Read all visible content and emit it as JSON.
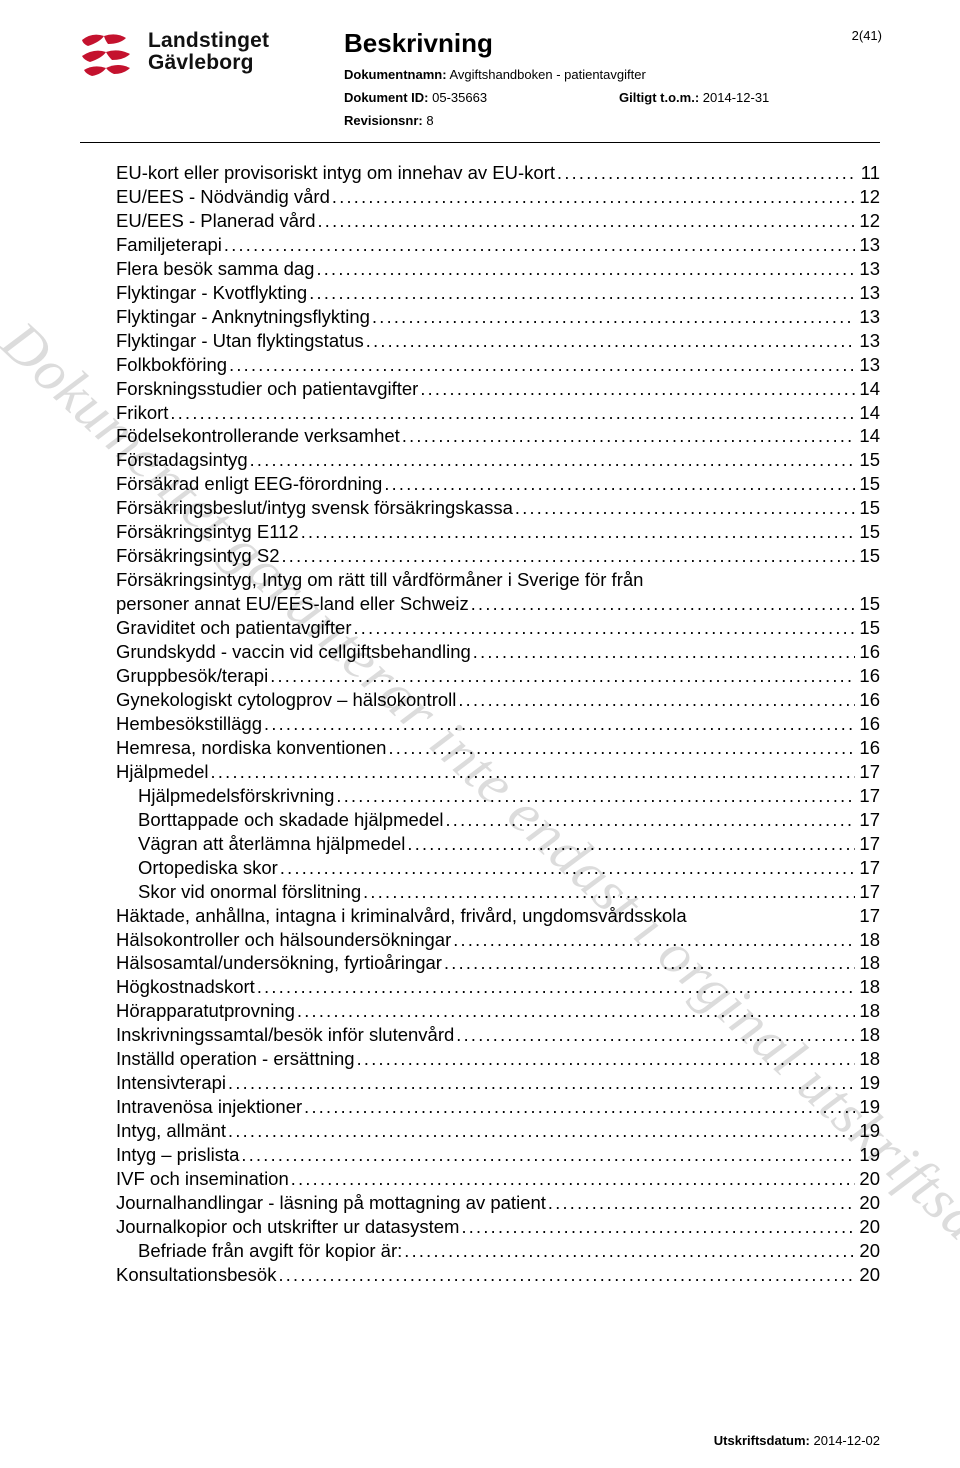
{
  "page_number": "2(41)",
  "logo": {
    "line1": "Landstinget",
    "line2": "Gävleborg"
  },
  "header": {
    "heading": "Beskrivning",
    "doc_name_label": "Dokumentnamn:",
    "doc_name": "Avgiftshandboken - patientavgifter",
    "doc_id_label": "Dokument ID:",
    "doc_id": "05-35663",
    "valid_label": "Giltigt t.o.m.:",
    "valid": "2014-12-31",
    "revision_label": "Revisionsnr:",
    "revision": "8"
  },
  "watermark": "Kopia - Dokumentet garanterar inte endast i orginal utskriftsdatumet",
  "footer": {
    "label": "Utskriftsdatum:",
    "date": "2014-12-02"
  },
  "toc": [
    {
      "title": "EU-kort eller provisoriskt intyg om innehav av EU-kort",
      "page": "11",
      "indent": 0
    },
    {
      "title": "EU/EES - Nödvändig vård",
      "page": "12",
      "indent": 0
    },
    {
      "title": "EU/EES - Planerad vård",
      "page": "12",
      "indent": 0
    },
    {
      "title": "Familjeterapi",
      "page": "13",
      "indent": 0
    },
    {
      "title": "Flera besök samma dag",
      "page": "13",
      "indent": 0
    },
    {
      "title": "Flyktingar - Kvotflykting",
      "page": "13",
      "indent": 0
    },
    {
      "title": "Flyktingar - Anknytningsflykting",
      "page": "13",
      "indent": 0
    },
    {
      "title": "Flyktingar - Utan flyktingstatus",
      "page": "13",
      "indent": 0
    },
    {
      "title": "Folkbokföring",
      "page": "13",
      "indent": 0
    },
    {
      "title": "Forskningsstudier och patientavgifter",
      "page": "14",
      "indent": 0
    },
    {
      "title": "Frikort",
      "page": "14",
      "indent": 0
    },
    {
      "title": "Födelsekontrollerande verksamhet",
      "page": "14",
      "indent": 0
    },
    {
      "title": "Förstadagsintyg",
      "page": "15",
      "indent": 0
    },
    {
      "title": "Försäkrad enligt EEG-förordning",
      "page": "15",
      "indent": 0
    },
    {
      "title": "Försäkringsbeslut/intyg svensk försäkringskassa",
      "page": "15",
      "indent": 0
    },
    {
      "title": "Försäkringsintyg E112",
      "page": "15",
      "indent": 0
    },
    {
      "title": "Försäkringsintyg S2",
      "page": "15",
      "indent": 0
    },
    {
      "title": "Försäkringsintyg, Intyg om rätt till vårdförmåner i Sverige för personer från annat EU/EES-land eller Schweiz",
      "page": "15",
      "indent": 0,
      "wrap": true
    },
    {
      "title": "Graviditet och patientavgifter",
      "page": "15",
      "indent": 0
    },
    {
      "title": "Grundskydd - vaccin vid cellgiftsbehandling",
      "page": "16",
      "indent": 0
    },
    {
      "title": "Gruppbesök/terapi",
      "page": "16",
      "indent": 0
    },
    {
      "title": "Gynekologiskt cytologprov – hälsokontroll",
      "page": "16",
      "indent": 0
    },
    {
      "title": "Hembesökstillägg",
      "page": "16",
      "indent": 0
    },
    {
      "title": "Hemresa, nordiska konventionen",
      "page": "16",
      "indent": 0
    },
    {
      "title": "Hjälpmedel",
      "page": "17",
      "indent": 0
    },
    {
      "title": "Hjälpmedelsförskrivning",
      "page": "17",
      "indent": 1
    },
    {
      "title": "Borttappade och skadade hjälpmedel",
      "page": "17",
      "indent": 1
    },
    {
      "title": "Vägran att återlämna hjälpmedel",
      "page": "17",
      "indent": 1
    },
    {
      "title": "Ortopediska skor",
      "page": "17",
      "indent": 1
    },
    {
      "title": "Skor vid onormal förslitning",
      "page": "17",
      "indent": 1
    },
    {
      "title": "Häktade, anhållna, intagna i kriminalvård, frivård, ungdomsvårdsskola",
      "page": "17",
      "indent": 0,
      "noleader": true
    },
    {
      "title": "Hälsokontroller och hälsoundersökningar",
      "page": "18",
      "indent": 0
    },
    {
      "title": "Hälsosamtal/undersökning, fyrtioåringar",
      "page": "18",
      "indent": 0
    },
    {
      "title": "Högkostnadskort",
      "page": "18",
      "indent": 0
    },
    {
      "title": "Hörapparatutprovning",
      "page": "18",
      "indent": 0
    },
    {
      "title": "Inskrivningssamtal/besök inför slutenvård",
      "page": "18",
      "indent": 0
    },
    {
      "title": "Inställd operation - ersättning",
      "page": "18",
      "indent": 0
    },
    {
      "title": "Intensivterapi",
      "page": "19",
      "indent": 0
    },
    {
      "title": "Intravenösa injektioner",
      "page": "19",
      "indent": 0
    },
    {
      "title": "Intyg, allmänt",
      "page": "19",
      "indent": 0
    },
    {
      "title": "Intyg – prislista",
      "page": "19",
      "indent": 0
    },
    {
      "title": "IVF och insemination",
      "page": "20",
      "indent": 0
    },
    {
      "title": "Journalhandlingar - läsning på mottagning av patient",
      "page": "20",
      "indent": 0
    },
    {
      "title": "Journalkopior och utskrifter ur datasystem",
      "page": "20",
      "indent": 0
    },
    {
      "title": "Befriade från avgift för kopior är:",
      "page": "20",
      "indent": 1
    },
    {
      "title": "Konsultationsbesök",
      "page": "20",
      "indent": 0
    }
  ]
}
